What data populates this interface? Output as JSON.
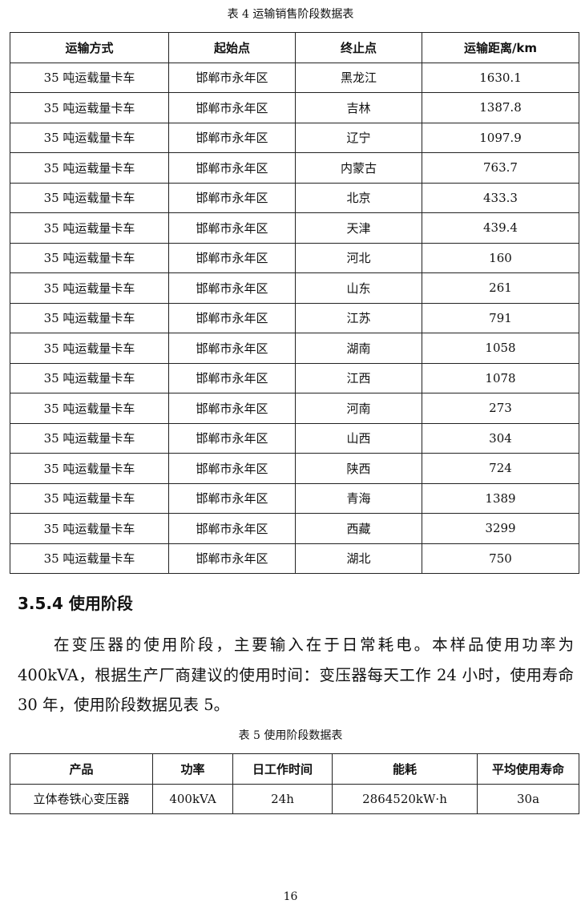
{
  "table4": {
    "caption": "表 4  运输销售阶段数据表",
    "headers": [
      "运输方式",
      "起始点",
      "终止点",
      "运输距离/km"
    ],
    "rows": [
      [
        "35 吨运载量卡车",
        "邯郸市永年区",
        "黑龙江",
        "1630.1"
      ],
      [
        "35 吨运载量卡车",
        "邯郸市永年区",
        "吉林",
        "1387.8"
      ],
      [
        "35 吨运载量卡车",
        "邯郸市永年区",
        "辽宁",
        "1097.9"
      ],
      [
        "35 吨运载量卡车",
        "邯郸市永年区",
        "内蒙古",
        "763.7"
      ],
      [
        "35 吨运载量卡车",
        "邯郸市永年区",
        "北京",
        "433.3"
      ],
      [
        "35 吨运载量卡车",
        "邯郸市永年区",
        "天津",
        "439.4"
      ],
      [
        "35 吨运载量卡车",
        "邯郸市永年区",
        "河北",
        "160"
      ],
      [
        "35 吨运载量卡车",
        "邯郸市永年区",
        "山东",
        "261"
      ],
      [
        "35 吨运载量卡车",
        "邯郸市永年区",
        "江苏",
        "791"
      ],
      [
        "35 吨运载量卡车",
        "邯郸市永年区",
        "湖南",
        "1058"
      ],
      [
        "35 吨运载量卡车",
        "邯郸市永年区",
        "江西",
        "1078"
      ],
      [
        "35 吨运载量卡车",
        "邯郸市永年区",
        "河南",
        "273"
      ],
      [
        "35 吨运载量卡车",
        "邯郸市永年区",
        "山西",
        "304"
      ],
      [
        "35 吨运载量卡车",
        "邯郸市永年区",
        "陕西",
        "724"
      ],
      [
        "35 吨运载量卡车",
        "邯郸市永年区",
        "青海",
        "1389"
      ],
      [
        "35 吨运载量卡车",
        "邯郸市永年区",
        "西藏",
        "3299"
      ],
      [
        "35 吨运载量卡车",
        "邯郸市永年区",
        "湖北",
        "750"
      ]
    ]
  },
  "section": {
    "heading": "3.5.4  使用阶段",
    "paragraph": "在变压器的使用阶段，主要输入在于日常耗电。本样品使用功率为400kVA，根据生产厂商建议的使用时间：变压器每天工作 24 小时，使用寿命 30 年，使用阶段数据见表 5。"
  },
  "table5": {
    "caption": "表 5  使用阶段数据表",
    "headers": [
      "产品",
      "功率",
      "日工作时间",
      "能耗",
      "平均使用寿命"
    ],
    "rows": [
      [
        "立体卷铁心变压器",
        "400kVA",
        "24h",
        "2864520kW·h",
        "30a"
      ]
    ]
  },
  "page_number": "16"
}
